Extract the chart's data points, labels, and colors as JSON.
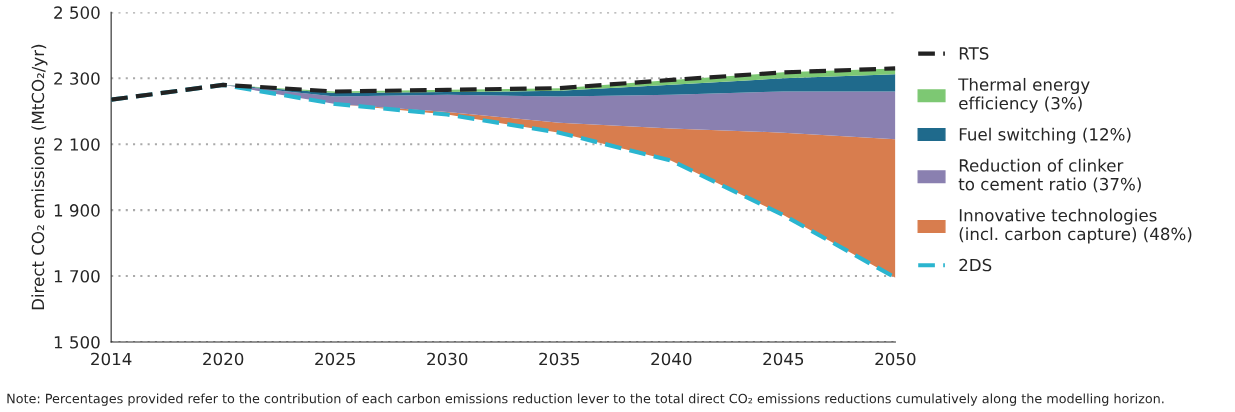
{
  "chart_data": {
    "type": "area",
    "categories": [
      "2014",
      "2020",
      "2025",
      "2030",
      "2035",
      "2040",
      "2045",
      "2050"
    ],
    "ylabel": "Direct CO₂ emissions (MtCO₂/yr)",
    "ylim": [
      1500,
      2500
    ],
    "yticks": [
      {
        "value": 1500,
        "label": "1 500"
      },
      {
        "value": 1700,
        "label": "1 700"
      },
      {
        "value": 1900,
        "label": "1 900"
      },
      {
        "value": 2100,
        "label": "2 100"
      },
      {
        "value": 2300,
        "label": "2 300"
      },
      {
        "value": 2500,
        "label": "2 500"
      }
    ],
    "grid": "y",
    "legend": "right",
    "series": [
      {
        "name": "2DS",
        "type": "line",
        "line_style": "dashed",
        "color": "#2bb5cf",
        "values": [
          2235,
          2280,
          2222,
          2190,
          2135,
          2050,
          1885,
          1695
        ]
      },
      {
        "name": "Innovative technologies\n(incl. carbon capture) (48%)",
        "color": "#d87d4e",
        "values": [
          null,
          2280,
          2222,
          2198,
          2165,
          2148,
          2135,
          2115
        ]
      },
      {
        "name": "Reduction of clinker\nto cement ratio (37%)",
        "color": "#8a80b0",
        "values": [
          null,
          2280,
          2245,
          2250,
          2245,
          2250,
          2260,
          2260
        ]
      },
      {
        "name": "Fuel switching (12%)",
        "color": "#1f6a8c",
        "values": [
          null,
          2280,
          2255,
          2258,
          2262,
          2280,
          2300,
          2312
        ]
      },
      {
        "name": "Thermal energy\nefficiency (3%)",
        "color": "#7dc873",
        "values": [
          null,
          2280,
          2260,
          2265,
          2270,
          2295,
          2318,
          2330
        ]
      },
      {
        "name": "RTS",
        "type": "line",
        "line_style": "dashed",
        "color": "#222222",
        "values": [
          2235,
          2280,
          2260,
          2265,
          2270,
          2295,
          2318,
          2330
        ]
      }
    ],
    "annotations": [
      "Note: Percentages provided refer to the contribution of each carbon emissions reduction lever to the total direct CO₂ emissions reductions cumulatively along the modelling horizon."
    ]
  }
}
